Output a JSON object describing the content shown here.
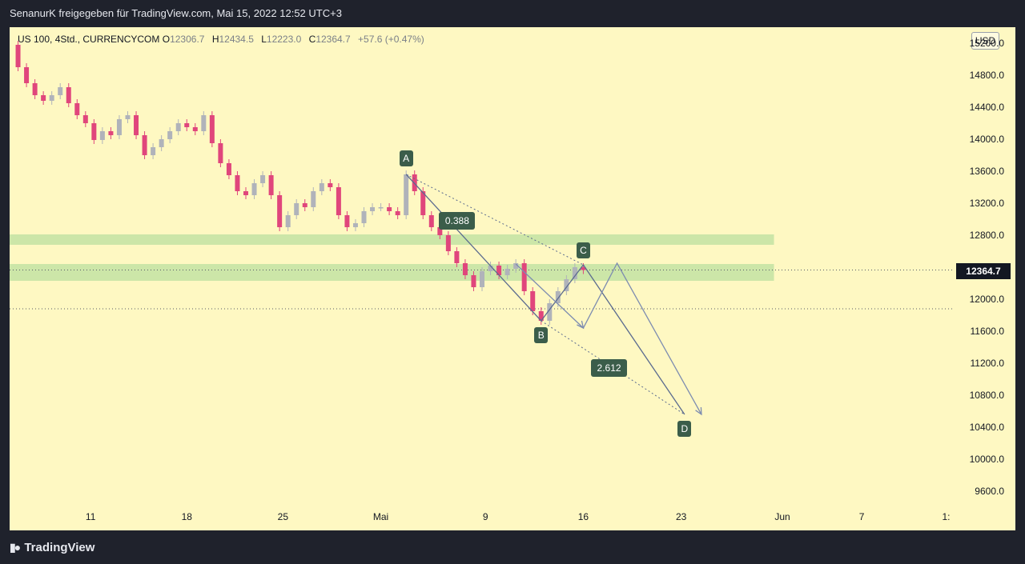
{
  "header": {
    "shared_text": "SenanurK freigegeben für TradingView.com, Mai 15, 2022 12:52 UTC+3"
  },
  "legend": {
    "symbol": "US 100, 4Std., CURRENCYCOM",
    "o_label": "O",
    "o_value": "12306.7",
    "h_label": "H",
    "h_value": "12434.5",
    "l_label": "L",
    "l_value": "12223.0",
    "c_label": "C",
    "c_value": "12364.7",
    "change": "+57.6 (+0.47%)"
  },
  "currency_button": "USD",
  "last_price": "12364.7",
  "footer": {
    "brand": "TradingView",
    "logo_icon": "tradingview-logo-icon"
  },
  "chart_data": {
    "type": "candlestick",
    "colors": {
      "background": "#fef8c2",
      "up": "#b0b3ba",
      "down": "#e0467c",
      "zone": "#c7e3a5",
      "pattern": "#5b6b8f",
      "label": "#3b5d4a"
    },
    "y_ticks": [
      "15200.0",
      "14800.0",
      "14400.0",
      "14000.0",
      "13600.0",
      "13200.0",
      "12800.0",
      "12400.0",
      "12000.0",
      "11600.0",
      "11200.0",
      "10800.0",
      "10400.0",
      "10000.0",
      "9600.0"
    ],
    "x_ticks": [
      "11",
      "18",
      "25",
      "Mai",
      "9",
      "16",
      "23",
      "Jun",
      "7",
      "1:"
    ],
    "zones": [
      {
        "from": 12680,
        "to": 12810
      },
      {
        "from": 12230,
        "to": 12440
      }
    ],
    "horizontal_levels": [
      12364.7,
      11880
    ],
    "price_path": [
      [
        0,
        15180
      ],
      [
        0.5,
        14900
      ],
      [
        1,
        14700
      ],
      [
        1.5,
        14550
      ],
      [
        2,
        14480
      ],
      [
        2.5,
        14550
      ],
      [
        3,
        14650
      ],
      [
        3.5,
        14450
      ],
      [
        4,
        14300
      ],
      [
        4.5,
        14200
      ],
      [
        5,
        13990
      ],
      [
        5.5,
        14100
      ],
      [
        6,
        14050
      ],
      [
        6.5,
        14250
      ],
      [
        7,
        14300
      ],
      [
        7.5,
        14050
      ],
      [
        8,
        13800
      ],
      [
        8.5,
        13900
      ],
      [
        9,
        14000
      ],
      [
        9.5,
        14100
      ],
      [
        10,
        14200
      ],
      [
        10.5,
        14150
      ],
      [
        11,
        14100
      ],
      [
        11.5,
        14300
      ],
      [
        12,
        13950
      ],
      [
        12.5,
        13700
      ],
      [
        13,
        13550
      ],
      [
        13.5,
        13350
      ],
      [
        14,
        13300
      ],
      [
        14.5,
        13450
      ],
      [
        15,
        13550
      ],
      [
        15.5,
        13300
      ],
      [
        16,
        12900
      ],
      [
        16.5,
        13050
      ],
      [
        17,
        13200
      ],
      [
        17.5,
        13150
      ],
      [
        18,
        13350
      ],
      [
        18.5,
        13450
      ],
      [
        19,
        13400
      ],
      [
        19.5,
        13050
      ],
      [
        20,
        12900
      ],
      [
        20.5,
        12950
      ],
      [
        21,
        13100
      ],
      [
        21.5,
        13150
      ],
      [
        22,
        13150
      ],
      [
        22.5,
        13100
      ],
      [
        23,
        13050
      ],
      [
        23.5,
        13560
      ],
      [
        24,
        13350
      ],
      [
        24.5,
        13050
      ],
      [
        25,
        12900
      ],
      [
        25.5,
        12800
      ],
      [
        26,
        12600
      ],
      [
        26.5,
        12450
      ],
      [
        27,
        12300
      ],
      [
        27.5,
        12150
      ],
      [
        28,
        12350
      ],
      [
        28.5,
        12420
      ],
      [
        29,
        12300
      ],
      [
        29.5,
        12380
      ],
      [
        30,
        12450
      ],
      [
        30.5,
        12100
      ],
      [
        31,
        11850
      ],
      [
        31.5,
        11730
      ],
      [
        32,
        11950
      ],
      [
        32.5,
        12100
      ],
      [
        33,
        12250
      ],
      [
        33.5,
        12400
      ],
      [
        34,
        12364.7
      ]
    ],
    "harmonic_pattern": {
      "points": [
        {
          "name": "A",
          "x": 23.5,
          "y": 13560
        },
        {
          "name": "B",
          "x": 31.5,
          "y": 11730
        },
        {
          "name": "C",
          "x": 34,
          "y": 12430
        },
        {
          "name": "D",
          "x": 40,
          "y": 10560
        }
      ],
      "ratios": [
        {
          "label": "0.388",
          "x": 26.5,
          "y": 12980
        },
        {
          "label": "2.612",
          "x": 35.5,
          "y": 11140
        }
      ]
    },
    "projection_path": [
      [
        30,
        12440
      ],
      [
        34,
        11640
      ],
      [
        36,
        12450
      ],
      [
        41,
        10560
      ]
    ],
    "x_range": [
      0,
      56
    ],
    "y_range": [
      9400,
      15400
    ]
  }
}
